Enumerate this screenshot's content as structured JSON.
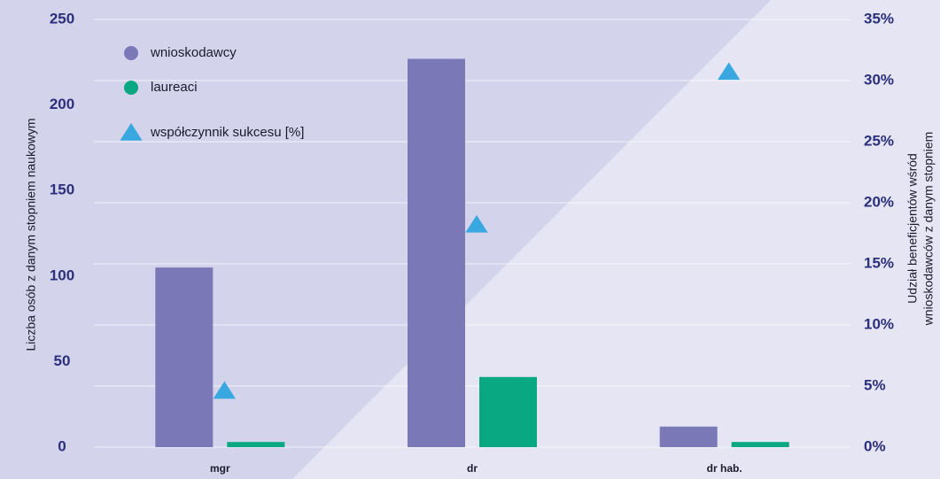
{
  "chart_data": {
    "type": "bar",
    "ylabel": "Liczba osób z danym stopniem naukowym",
    "y2label": [
      "Udział beneficjentów wśród",
      "wnioskodawców z danym stopniem"
    ],
    "categories": [
      "mgr",
      "dr",
      "dr hab."
    ],
    "series": [
      {
        "name": "wnioskodawcy",
        "color": "#7b78b8",
        "values": [
          105,
          227,
          12
        ]
      },
      {
        "name": "laureaci",
        "color": "#0aa882",
        "values": [
          3,
          41,
          3
        ]
      },
      {
        "name": "współczynnik sukcesu [%]",
        "color": "#3aa8e0",
        "values": [
          4.6,
          18.2,
          30.7
        ],
        "axis": "y2",
        "marker": "triangle"
      }
    ],
    "ylim": [
      0,
      250
    ],
    "yticks": [
      0,
      50,
      100,
      150,
      200,
      250
    ],
    "y2lim": [
      0,
      35
    ],
    "y2ticks": [
      {
        "value": 0,
        "label": "0%"
      },
      {
        "value": 5,
        "label": "5%"
      },
      {
        "value": 10,
        "label": "10%"
      },
      {
        "value": 15,
        "label": "15%"
      },
      {
        "value": 20,
        "label": "20%"
      },
      {
        "value": 25,
        "label": "25%"
      },
      {
        "value": 30,
        "label": "30%"
      },
      {
        "value": 35,
        "label": "35%"
      }
    ],
    "grid": true,
    "legend": "upper left"
  }
}
